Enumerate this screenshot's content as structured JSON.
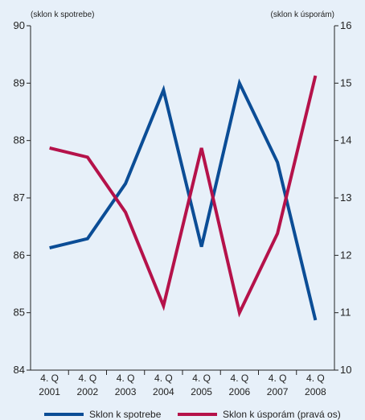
{
  "chart_data": {
    "type": "line",
    "categories": [
      [
        "4. Q",
        "2001"
      ],
      [
        "4. Q",
        "2002"
      ],
      [
        "4. Q",
        "2003"
      ],
      [
        "4. Q",
        "2004"
      ],
      [
        "4. Q",
        "2005"
      ],
      [
        "4. Q",
        "2006"
      ],
      [
        "4. Q",
        "2007"
      ],
      [
        "4. Q",
        "2008"
      ]
    ],
    "left_axis": {
      "label": "(sklon k spotrebe)",
      "range": [
        84,
        90
      ],
      "ticks": [
        "84",
        "85",
        "86",
        "87",
        "88",
        "89",
        "90"
      ]
    },
    "right_axis": {
      "label": "(sklon k úsporám)",
      "range": [
        10,
        16
      ],
      "ticks": [
        "10",
        "11",
        "12",
        "13",
        "14",
        "15",
        "16"
      ]
    },
    "series": [
      {
        "name": "Sklon k spotrebe",
        "axis": "left",
        "color": "#0b4d96",
        "values": [
          86.13,
          86.29,
          87.25,
          88.88,
          86.15,
          89.0,
          87.62,
          84.87
        ]
      },
      {
        "name": "Sklon k úsporám (pravá os)",
        "axis": "right",
        "color": "#b5124a",
        "values": [
          13.87,
          13.71,
          12.75,
          11.12,
          13.87,
          11.0,
          12.38,
          15.13
        ]
      }
    ],
    "grid": false,
    "legend_position": "bottom"
  }
}
